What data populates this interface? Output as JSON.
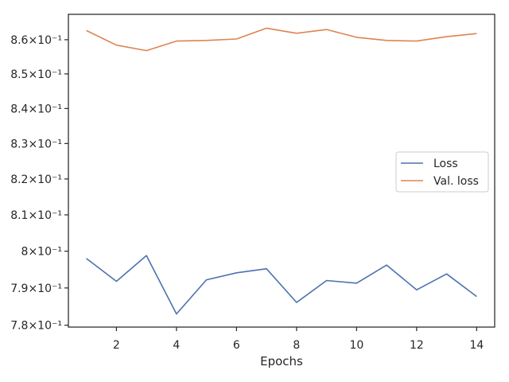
{
  "chart_data": {
    "type": "line",
    "xlabel": "Epochs",
    "ylabel": "",
    "yscale": "log",
    "xlim": [
      0.4,
      14.6
    ],
    "ylim": [
      0.7795,
      0.8675
    ],
    "xticks": [
      2,
      4,
      6,
      8,
      10,
      12,
      14
    ],
    "yticks": [
      0.78,
      0.79,
      0.8,
      0.81,
      0.82,
      0.83,
      0.84,
      0.85,
      0.86
    ],
    "ytick_labels": [
      "7.8×10⁻¹",
      "7.9×10⁻¹",
      "8×10⁻¹",
      "8.1×10⁻¹",
      "8.2×10⁻¹",
      "8.3×10⁻¹",
      "8.4×10⁻¹",
      "8.5×10⁻¹",
      "8.6×10⁻¹"
    ],
    "legend_position": "center-right",
    "grid": false,
    "x": [
      1,
      2,
      3,
      4,
      5,
      6,
      7,
      8,
      9,
      10,
      11,
      12,
      13,
      14
    ],
    "series": [
      {
        "name": "Loss",
        "color": "#4c72b0",
        "values": [
          0.798,
          0.7918,
          0.7988,
          0.783,
          0.7922,
          0.7941,
          0.7952,
          0.7861,
          0.792,
          0.7913,
          0.7962,
          0.7895,
          0.7938,
          0.7877
        ]
      },
      {
        "name": "Val. loss",
        "color": "#dd8452",
        "values": [
          0.8627,
          0.8584,
          0.8568,
          0.8596,
          0.8598,
          0.8602,
          0.8634,
          0.8619,
          0.863,
          0.8607,
          0.8598,
          0.8596,
          0.8609,
          0.8618
        ]
      }
    ]
  }
}
